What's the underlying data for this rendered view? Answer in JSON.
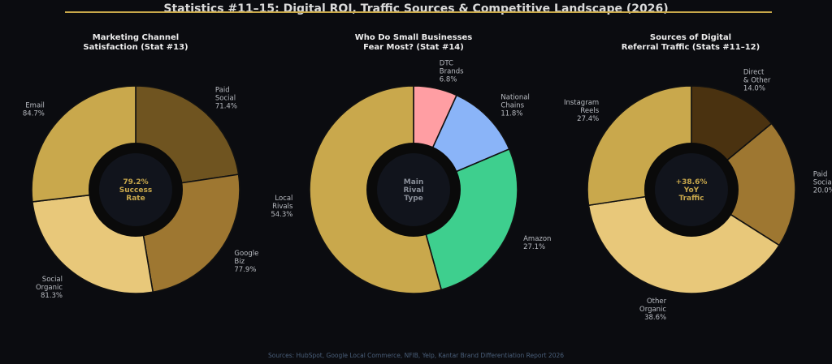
{
  "page": {
    "title": "Statistics #11–15: Digital ROI, Traffic Sources & Competitive Landscape (2026)",
    "footer": "Sources: HubSpot, Google Local Commerce, NFIB, Yelp, Kantar Brand Differentiation Report 2026"
  },
  "chart_data": [
    {
      "type": "pie",
      "donut": true,
      "title": "Marketing Channel\nSatisfaction (Stat #13)",
      "center_label": "79.2%\nSuccess\nRate",
      "center_color": "#c9a84c",
      "slices": [
        {
          "label": "Paid\nSocial",
          "value": 71.4,
          "display": "71.4%",
          "color": "#6f5420"
        },
        {
          "label": "Google\nBiz",
          "value": 77.9,
          "display": "77.9%",
          "color": "#9e7731"
        },
        {
          "label": "Social\nOrganic",
          "value": 81.3,
          "display": "81.3%",
          "color": "#e8c87a"
        },
        {
          "label": "Email",
          "value": 84.7,
          "display": "84.7%",
          "color": "#c9a84c"
        }
      ]
    },
    {
      "type": "pie",
      "donut": true,
      "title": "Who Do Small Businesses\nFear Most? (Stat #14)",
      "center_label": "Main\nRival\nType",
      "center_color": "#8a8f99",
      "slices": [
        {
          "label": "DTC\nBrands",
          "value": 6.8,
          "display": "6.8%",
          "color": "#ff9ea3"
        },
        {
          "label": "National\nChains",
          "value": 11.8,
          "display": "11.8%",
          "color": "#8ab4f8"
        },
        {
          "label": "Amazon",
          "value": 27.1,
          "display": "27.1%",
          "color": "#3ecf8e"
        },
        {
          "label": "Local\nRivals",
          "value": 54.3,
          "display": "54.3%",
          "color": "#c9a84c"
        }
      ]
    },
    {
      "type": "pie",
      "donut": true,
      "title": "Sources of Digital\nReferral Traffic (Stats #11–12)",
      "center_label": "+38.6%\nYoY\nTraffic",
      "center_color": "#c9a84c",
      "slices": [
        {
          "label": "Direct\n& Other",
          "value": 14.0,
          "display": "14.0%",
          "color": "#4a3210"
        },
        {
          "label": "Paid\nSocial",
          "value": 20.0,
          "display": "20.0%",
          "color": "#9e7731"
        },
        {
          "label": "Other\nOrganic",
          "value": 38.6,
          "display": "38.6%",
          "color": "#e8c87a"
        },
        {
          "label": "Instagram\nReels",
          "value": 27.4,
          "display": "27.4%",
          "color": "#c9a84c"
        }
      ]
    }
  ]
}
